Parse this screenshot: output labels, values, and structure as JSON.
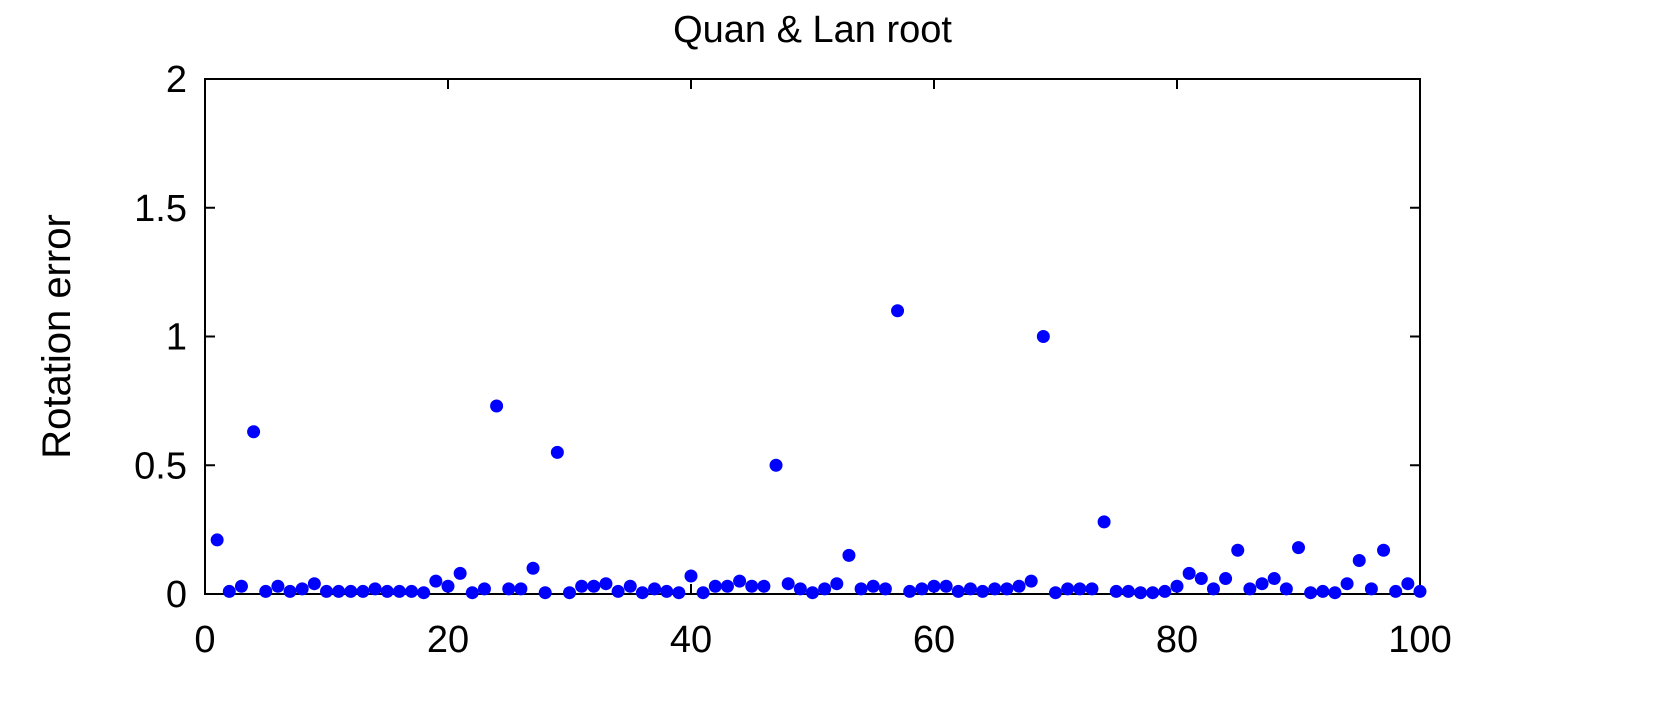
{
  "chart_data": {
    "type": "scatter",
    "title": "Quan & Lan root",
    "xlabel": "",
    "ylabel": "Rotation error",
    "xlim": [
      0,
      100
    ],
    "ylim": [
      0,
      2
    ],
    "xticks": [
      0,
      20,
      40,
      60,
      80,
      100
    ],
    "xtick_labels": [
      "0",
      "20",
      "40",
      "60",
      "80",
      "100"
    ],
    "yticks": [
      0,
      0.5,
      1,
      1.5,
      2
    ],
    "ytick_labels": [
      "0",
      "0.5",
      "1",
      "1.5",
      "2"
    ],
    "grid": false,
    "marker_color": "#0000ff",
    "series": [
      {
        "x": [
          1,
          2,
          3,
          4,
          5,
          6,
          7,
          8,
          9,
          10,
          11,
          12,
          13,
          14,
          15,
          16,
          17,
          18,
          19,
          20,
          21,
          22,
          23,
          24,
          25,
          26,
          27,
          28,
          29,
          30,
          31,
          32,
          33,
          34,
          35,
          36,
          37,
          38,
          39,
          40,
          41,
          42,
          43,
          44,
          45,
          46,
          47,
          48,
          49,
          50,
          51,
          52,
          53,
          54,
          55,
          56,
          57,
          58,
          59,
          60,
          61,
          62,
          63,
          64,
          65,
          66,
          67,
          68,
          69,
          70,
          71,
          72,
          73,
          74,
          75,
          76,
          77,
          78,
          79,
          80,
          81,
          82,
          83,
          84,
          85,
          86,
          87,
          88,
          89,
          90,
          91,
          92,
          93,
          94,
          95,
          96,
          97,
          98,
          99,
          100
        ],
        "y": [
          0.21,
          0.01,
          0.03,
          0.63,
          0.01,
          0.03,
          0.01,
          0.02,
          0.04,
          0.01,
          0.01,
          0.01,
          0.01,
          0.02,
          0.01,
          0.01,
          0.01,
          0.005,
          0.05,
          0.03,
          0.08,
          0.005,
          0.02,
          0.73,
          0.02,
          0.02,
          0.1,
          0.005,
          0.55,
          0.005,
          0.03,
          0.03,
          0.04,
          0.01,
          0.03,
          0.005,
          0.02,
          0.01,
          0.005,
          0.07,
          0.005,
          0.03,
          0.03,
          0.05,
          0.03,
          0.03,
          0.5,
          0.04,
          0.02,
          0.005,
          0.02,
          0.04,
          0.15,
          0.02,
          0.03,
          0.02,
          1.1,
          0.01,
          0.02,
          0.03,
          0.03,
          0.01,
          0.02,
          0.01,
          0.02,
          0.02,
          0.03,
          0.05,
          1.0,
          0.005,
          0.02,
          0.02,
          0.02,
          0.28,
          0.01,
          0.01,
          0.005,
          0.005,
          0.01,
          0.03,
          0.08,
          0.06,
          0.02,
          0.06,
          0.17,
          0.02,
          0.04,
          0.06,
          0.02,
          0.18,
          0.005,
          0.01,
          0.005,
          0.04,
          0.13,
          0.02,
          0.17,
          0.01,
          0.04,
          0.01
        ]
      }
    ]
  }
}
